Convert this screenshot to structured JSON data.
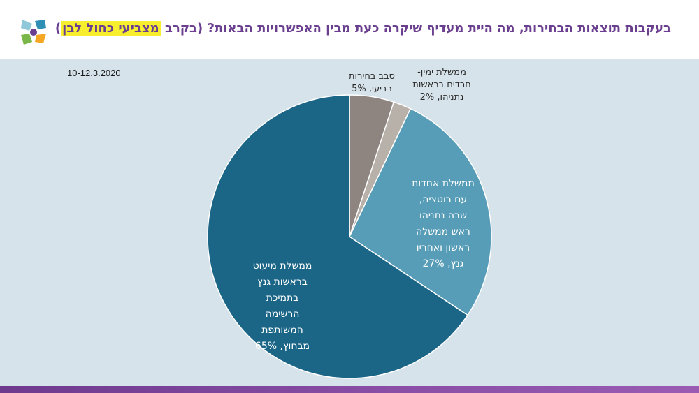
{
  "header": {
    "title_main": "בעקבות תוצאות הבחירות, מה היית מעדיף שיקרה כעת מבין האפשרויות הבאות? (בקרב ",
    "title_highlight": "מצביעי כחול לבן",
    "title_close": ")"
  },
  "date": "10-12.3.2020",
  "colors": {
    "title": "#6b3f8f",
    "highlight": "#f7ef2d",
    "background": "#d6e3ea",
    "bar": "#6e3a8e"
  },
  "chart_data": {
    "type": "pie",
    "title": "",
    "slices": [
      {
        "label_lines": [
          "סבב בחירות",
          "רביעי, 5%"
        ],
        "value": 5,
        "color": "#8e8580",
        "label_color": "#2b2b2b"
      },
      {
        "label_lines": [
          "ממשלת ימין-",
          "חרדים בראשות",
          "נתניהו, 2%"
        ],
        "value": 2,
        "color": "#b7b1aa",
        "label_color": "#2b2b2b"
      },
      {
        "label_lines": [
          "ממשלת אחדות",
          "עם רוטציה,",
          "שבה נתניהו",
          "ראש ממשלה",
          "ראשון ואחריו",
          "גנץ, 27%"
        ],
        "value": 27,
        "color": "#579db8",
        "label_color": "#ffffff"
      },
      {
        "label_lines": [
          "ממשלת מיעוט",
          "בראשות גנץ",
          "בתמיכת",
          "הרשימה",
          "המשותפת",
          "מבחוץ, 65%"
        ],
        "value": 65,
        "color": "#1b6687",
        "label_color": "#ffffff"
      }
    ]
  }
}
